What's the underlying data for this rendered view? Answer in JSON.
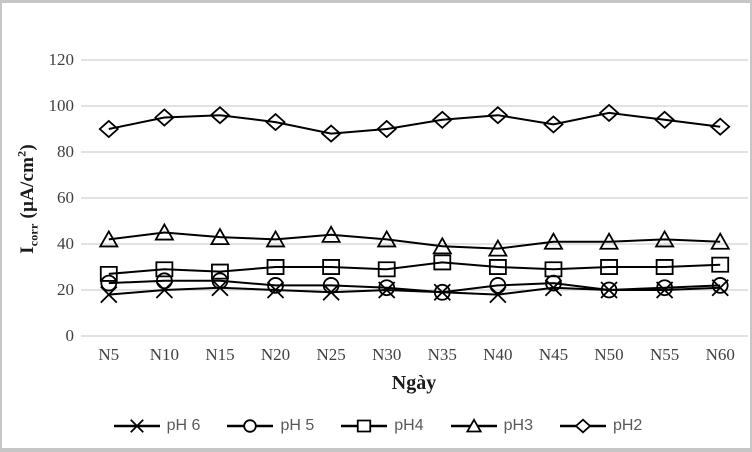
{
  "chart_data": {
    "type": "line",
    "title": "",
    "xlabel": "Ngày",
    "ylabel": "Icorr (µA/cm²)",
    "ylabel_parts": {
      "base": "I",
      "sub": "corr",
      "unit_open": " (µA/cm",
      "sup": "2",
      "unit_close": ")"
    },
    "categories": [
      "N5",
      "N10",
      "N15",
      "N20",
      "N25",
      "N30",
      "N35",
      "N40",
      "N45",
      "N50",
      "N55",
      "N60"
    ],
    "series": [
      {
        "name": "pH 6",
        "marker": "x",
        "values": [
          18,
          20,
          21,
          20,
          19,
          20,
          19,
          18,
          21,
          20,
          20,
          21
        ]
      },
      {
        "name": "pH 5",
        "marker": "circle",
        "values": [
          23,
          24,
          24,
          22,
          22,
          21,
          19,
          22,
          23,
          20,
          21,
          22
        ]
      },
      {
        "name": "pH4",
        "marker": "square",
        "values": [
          27,
          29,
          28,
          30,
          30,
          29,
          32,
          30,
          29,
          30,
          30,
          31
        ]
      },
      {
        "name": "pH3",
        "marker": "triangle",
        "values": [
          42,
          45,
          43,
          42,
          44,
          42,
          39,
          38,
          41,
          41,
          42,
          41
        ]
      },
      {
        "name": "pH2",
        "marker": "diamond",
        "values": [
          90,
          95,
          96,
          93,
          88,
          90,
          94,
          96,
          92,
          97,
          94,
          91
        ]
      }
    ],
    "ylim": [
      0,
      120
    ],
    "yticks": [
      0,
      20,
      40,
      60,
      80,
      100,
      120
    ],
    "grid": "horizontal",
    "legend_position": "bottom",
    "colors": {
      "series_stroke": "#000000",
      "gridline": "#d9d9d9",
      "tick_text": "#3f3f3f",
      "legend_text": "#595959",
      "frame_border": "#c6c6c6",
      "background": "#ffffff"
    }
  }
}
